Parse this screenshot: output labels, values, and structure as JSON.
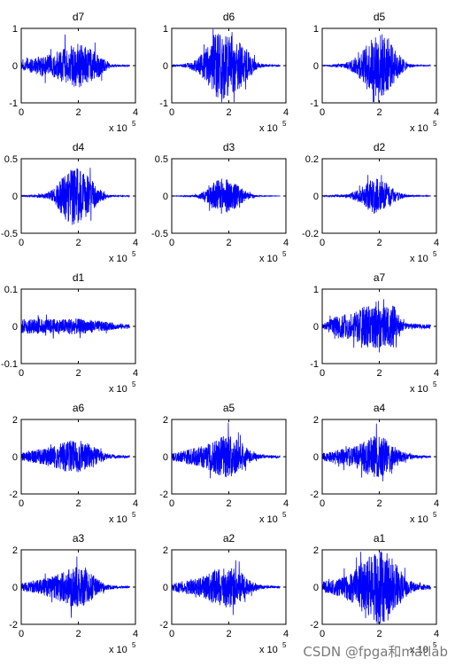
{
  "figure": {
    "background": "#ffffff",
    "line_color": "#0000ff",
    "watermark": "CSDN @fpga和matlab"
  },
  "chart_data": [
    {
      "type": "line",
      "title": "d7",
      "xlim": [
        0,
        4
      ],
      "xticks": [
        "0",
        "2",
        "4"
      ],
      "x_exponent": {
        "base": "x 10",
        "power": "5"
      },
      "ylim": [
        -1,
        1
      ],
      "yticks": [
        "-1",
        "0",
        "1"
      ],
      "envelope": {
        "x": [
          0,
          0.2,
          0.5,
          0.8,
          1.1,
          1.4,
          1.7,
          2.0,
          2.3,
          2.6,
          2.9,
          3.1,
          3.3,
          3.6,
          3.8
        ],
        "amp": [
          0.1,
          0.2,
          0.2,
          0.3,
          0.3,
          0.45,
          0.55,
          0.6,
          0.5,
          0.4,
          0.2,
          0.06,
          0.03,
          0.02,
          0.02
        ]
      }
    },
    {
      "type": "line",
      "title": "d6",
      "xlim": [
        0,
        4
      ],
      "xticks": [
        "0",
        "2",
        "4"
      ],
      "x_exponent": {
        "base": "x 10",
        "power": "5"
      },
      "ylim": [
        -1,
        1
      ],
      "yticks": [
        "-1",
        "0",
        "1"
      ],
      "envelope": {
        "x": [
          0,
          0.3,
          0.6,
          0.9,
          1.2,
          1.5,
          1.8,
          2.1,
          2.4,
          2.7,
          3.0,
          3.3,
          3.6,
          3.8
        ],
        "amp": [
          0.02,
          0.03,
          0.08,
          0.2,
          0.45,
          0.85,
          0.9,
          0.8,
          0.6,
          0.35,
          0.08,
          0.03,
          0.02,
          0.02
        ]
      }
    },
    {
      "type": "line",
      "title": "d5",
      "xlim": [
        0,
        4
      ],
      "xticks": [
        "0",
        "2",
        "4"
      ],
      "x_exponent": {
        "base": "x 10",
        "power": "5"
      },
      "ylim": [
        -1,
        1
      ],
      "yticks": [
        "-1",
        "0",
        "1"
      ],
      "envelope": {
        "x": [
          0,
          0.3,
          0.6,
          0.9,
          1.2,
          1.5,
          1.8,
          2.1,
          2.4,
          2.7,
          3.0,
          3.3,
          3.6,
          3.8
        ],
        "amp": [
          0.01,
          0.02,
          0.05,
          0.1,
          0.25,
          0.5,
          0.8,
          0.9,
          0.6,
          0.3,
          0.06,
          0.02,
          0.01,
          0.01
        ]
      }
    },
    {
      "type": "line",
      "title": "d4",
      "xlim": [
        0,
        4
      ],
      "xticks": [
        "0",
        "2",
        "4"
      ],
      "x_exponent": {
        "base": "x 10",
        "power": "5"
      },
      "ylim": [
        -0.5,
        0.5
      ],
      "yticks": [
        "-0.5",
        "0",
        "0.5"
      ],
      "envelope": {
        "x": [
          0,
          0.3,
          0.6,
          0.9,
          1.2,
          1.5,
          1.8,
          2.1,
          2.4,
          2.7,
          3.0,
          3.3,
          3.6,
          3.8
        ],
        "amp": [
          0.005,
          0.01,
          0.02,
          0.04,
          0.12,
          0.3,
          0.4,
          0.35,
          0.25,
          0.1,
          0.02,
          0.01,
          0.005,
          0.005
        ]
      }
    },
    {
      "type": "line",
      "title": "d3",
      "xlim": [
        0,
        4
      ],
      "xticks": [
        "0",
        "2",
        "4"
      ],
      "x_exponent": {
        "base": "x 10",
        "power": "5"
      },
      "ylim": [
        -0.5,
        0.5
      ],
      "yticks": [
        "-0.5",
        "0",
        "0.5"
      ],
      "envelope": {
        "x": [
          0,
          0.3,
          0.6,
          0.9,
          1.2,
          1.5,
          1.8,
          2.1,
          2.4,
          2.7,
          3.0,
          3.3,
          3.6,
          3.8
        ],
        "amp": [
          0.002,
          0.004,
          0.01,
          0.02,
          0.08,
          0.2,
          0.25,
          0.2,
          0.12,
          0.04,
          0.01,
          0.004,
          0.002,
          0.002
        ]
      }
    },
    {
      "type": "line",
      "title": "d2",
      "xlim": [
        0,
        4
      ],
      "xticks": [
        "0",
        "2",
        "4"
      ],
      "x_exponent": {
        "base": "x 10",
        "power": "5"
      },
      "ylim": [
        -0.2,
        0.2
      ],
      "yticks": [
        "-0.2",
        "0",
        "0.2"
      ],
      "envelope": {
        "x": [
          0,
          0.3,
          0.6,
          0.9,
          1.2,
          1.5,
          1.8,
          2.1,
          2.4,
          2.7,
          3.0,
          3.3,
          3.6,
          3.8
        ],
        "amp": [
          0.003,
          0.004,
          0.006,
          0.008,
          0.03,
          0.06,
          0.1,
          0.08,
          0.05,
          0.02,
          0.006,
          0.003,
          0.002,
          0.002
        ]
      }
    },
    {
      "type": "line",
      "title": "d1",
      "xlim": [
        0,
        4
      ],
      "xticks": [
        "0",
        "2",
        "4"
      ],
      "x_exponent": {
        "base": "x 10",
        "power": "5"
      },
      "ylim": [
        -0.1,
        0.1
      ],
      "yticks": [
        "-0.1",
        "0",
        "0.1"
      ],
      "envelope": {
        "x": [
          0,
          0.3,
          0.6,
          0.9,
          1.2,
          1.5,
          1.8,
          2.1,
          2.4,
          2.7,
          3.0,
          3.3,
          3.6,
          3.8
        ],
        "amp": [
          0.02,
          0.02,
          0.02,
          0.02,
          0.02,
          0.02,
          0.022,
          0.02,
          0.018,
          0.015,
          0.012,
          0.008,
          0.006,
          0.006
        ]
      }
    },
    null,
    {
      "type": "line",
      "title": "a7",
      "xlim": [
        0,
        4
      ],
      "xticks": [
        "0",
        "2",
        "4"
      ],
      "x_exponent": {
        "base": "x 10",
        "power": "5"
      },
      "ylim": [
        -1,
        1
      ],
      "yticks": [
        "-1",
        "0",
        "1"
      ],
      "envelope": {
        "x": [
          0,
          0.3,
          0.6,
          0.9,
          1.2,
          1.5,
          1.8,
          2.1,
          2.4,
          2.6,
          2.8,
          3.0,
          3.3,
          3.6,
          3.8
        ],
        "amp": [
          0.05,
          0.2,
          0.3,
          0.35,
          0.4,
          0.55,
          0.6,
          0.55,
          0.65,
          0.5,
          0.15,
          0.08,
          0.06,
          0.06,
          0.06
        ]
      }
    },
    {
      "type": "line",
      "title": "a6",
      "xlim": [
        0,
        4
      ],
      "xticks": [
        "0",
        "2",
        "4"
      ],
      "x_exponent": {
        "base": "x 10",
        "power": "5"
      },
      "ylim": [
        -2,
        2
      ],
      "yticks": [
        "-2",
        "0",
        "2"
      ],
      "envelope": {
        "x": [
          0,
          0.3,
          0.6,
          0.9,
          1.2,
          1.5,
          1.8,
          2.1,
          2.4,
          2.7,
          3.0,
          3.3,
          3.6,
          3.8
        ],
        "amp": [
          0.2,
          0.3,
          0.4,
          0.5,
          0.6,
          0.8,
          0.9,
          0.85,
          0.7,
          0.4,
          0.15,
          0.08,
          0.06,
          0.05
        ]
      }
    },
    {
      "type": "line",
      "title": "a5",
      "xlim": [
        0,
        4
      ],
      "xticks": [
        "0",
        "2",
        "4"
      ],
      "x_exponent": {
        "base": "x 10",
        "power": "5"
      },
      "ylim": [
        -2,
        2
      ],
      "yticks": [
        "-2",
        "0",
        "2"
      ],
      "envelope": {
        "x": [
          0,
          0.3,
          0.6,
          0.9,
          1.2,
          1.5,
          1.8,
          2.1,
          2.4,
          2.7,
          3.0,
          3.3,
          3.6,
          3.8
        ],
        "amp": [
          0.2,
          0.3,
          0.4,
          0.5,
          0.65,
          0.9,
          1.1,
          1.1,
          0.8,
          0.4,
          0.15,
          0.08,
          0.06,
          0.05
        ]
      }
    },
    {
      "type": "line",
      "title": "a4",
      "xlim": [
        0,
        4
      ],
      "xticks": [
        "0",
        "2",
        "4"
      ],
      "x_exponent": {
        "base": "x 10",
        "power": "5"
      },
      "ylim": [
        -2,
        2
      ],
      "yticks": [
        "-2",
        "0",
        "2"
      ],
      "envelope": {
        "x": [
          0,
          0.3,
          0.6,
          0.9,
          1.2,
          1.5,
          1.8,
          2.1,
          2.4,
          2.7,
          3.0,
          3.3,
          3.6,
          3.8
        ],
        "amp": [
          0.2,
          0.3,
          0.4,
          0.5,
          0.65,
          0.9,
          1.1,
          1.1,
          0.8,
          0.4,
          0.15,
          0.08,
          0.06,
          0.05
        ]
      }
    },
    {
      "type": "line",
      "title": "a3",
      "xlim": [
        0,
        4
      ],
      "xticks": [
        "0",
        "2",
        "4"
      ],
      "x_exponent": {
        "base": "x 10",
        "power": "5"
      },
      "ylim": [
        -2,
        2
      ],
      "yticks": [
        "-2",
        "0",
        "2"
      ],
      "envelope": {
        "x": [
          0,
          0.3,
          0.6,
          0.9,
          1.2,
          1.5,
          1.8,
          2.1,
          2.4,
          2.7,
          3.0,
          3.3,
          3.6,
          3.8
        ],
        "amp": [
          0.2,
          0.3,
          0.4,
          0.5,
          0.65,
          0.95,
          1.1,
          1.1,
          0.8,
          0.4,
          0.15,
          0.08,
          0.06,
          0.05
        ]
      }
    },
    {
      "type": "line",
      "title": "a2",
      "xlim": [
        0,
        4
      ],
      "xticks": [
        "0",
        "2",
        "4"
      ],
      "x_exponent": {
        "base": "x 10",
        "power": "5"
      },
      "ylim": [
        -2,
        2
      ],
      "yticks": [
        "-2",
        "0",
        "2"
      ],
      "envelope": {
        "x": [
          0,
          0.3,
          0.6,
          0.9,
          1.2,
          1.5,
          1.8,
          2.1,
          2.4,
          2.7,
          3.0,
          3.3,
          3.6,
          3.8
        ],
        "amp": [
          0.2,
          0.3,
          0.4,
          0.5,
          0.65,
          0.95,
          1.1,
          1.1,
          0.8,
          0.4,
          0.15,
          0.08,
          0.06,
          0.05
        ]
      }
    },
    {
      "type": "line",
      "title": "a1",
      "xlim": [
        0,
        4
      ],
      "xticks": [
        "0",
        "2",
        "4"
      ],
      "x_exponent": {
        "base": "x 10",
        "power": "5"
      },
      "ylim": [
        -2,
        2
      ],
      "yticks": [
        "-2",
        "0",
        "2"
      ],
      "envelope": {
        "x": [
          0,
          0.3,
          0.6,
          0.9,
          1.2,
          1.5,
          1.8,
          2.1,
          2.4,
          2.7,
          3.0,
          3.3,
          3.6,
          3.8
        ],
        "amp": [
          0.3,
          0.4,
          0.5,
          0.7,
          1.0,
          1.5,
          1.9,
          2.0,
          1.7,
          1.0,
          0.4,
          0.2,
          0.15,
          0.12
        ]
      }
    }
  ]
}
